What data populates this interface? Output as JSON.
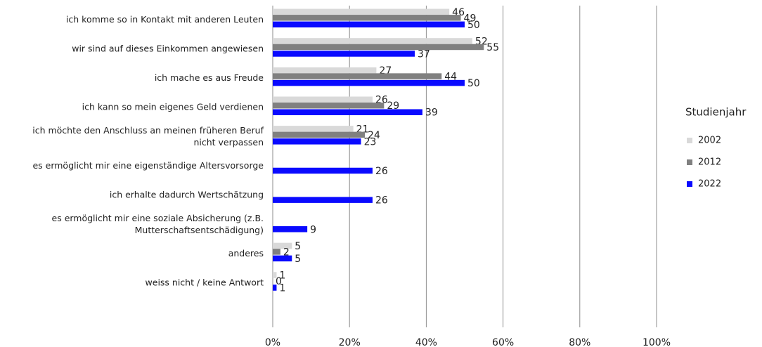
{
  "chart_data": {
    "type": "bar",
    "orientation": "horizontal",
    "categories": [
      "ich komme so in Kontakt mit anderen Leuten",
      "wir sind auf dieses Einkommen angewiesen",
      "ich mache es aus Freude",
      "ich kann so mein eigenes Geld verdienen",
      "ich möchte den Anschluss an meinen früheren Beruf\nnicht verpassen",
      "es ermöglicht mir eine eigenständige Altersvorsorge",
      "ich erhalte dadurch Wertschätzung",
      "es ermöglicht mir eine soziale Absicherung (z.B.\nMutterschaftsentschädigung)",
      "anderes",
      "weiss nicht / keine Antwort",
      null
    ],
    "series": [
      {
        "name": "2002",
        "color": "#d9d9d9",
        "values": [
          46,
          52,
          27,
          26,
          21,
          null,
          null,
          null,
          5,
          1,
          null
        ]
      },
      {
        "name": "2012",
        "color": "#808080",
        "values": [
          49,
          55,
          44,
          29,
          24,
          null,
          null,
          null,
          2,
          0,
          null
        ]
      },
      {
        "name": "2022",
        "color": "#0a0aff",
        "values": [
          50,
          37,
          50,
          39,
          23,
          26,
          26,
          9,
          5,
          1,
          null
        ]
      }
    ],
    "xlim": [
      0,
      100
    ],
    "xticks": [
      {
        "value": 0,
        "label": "0%"
      },
      {
        "value": 20,
        "label": "20%"
      },
      {
        "value": 40,
        "label": "40%"
      },
      {
        "value": 60,
        "label": "60%"
      },
      {
        "value": 80,
        "label": "80%"
      },
      {
        "value": 100,
        "label": "100%"
      }
    ],
    "grid": true,
    "legend_title": "Studienjahr",
    "legend_position": "right"
  }
}
